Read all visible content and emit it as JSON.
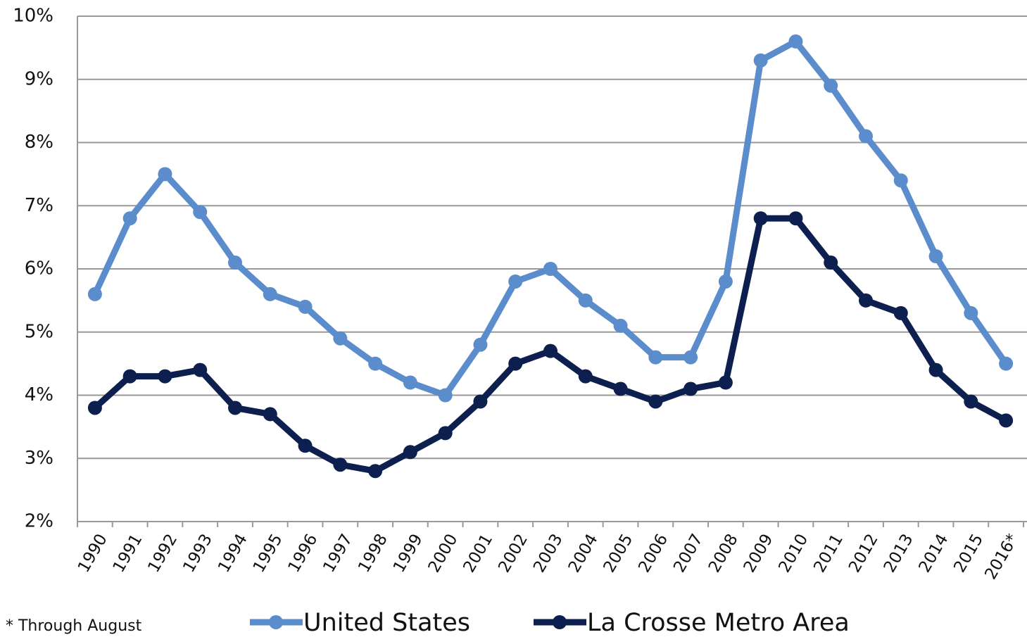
{
  "chart_data": {
    "type": "line",
    "categories": [
      "1990",
      "1991",
      "1992",
      "1993",
      "1994",
      "1995",
      "1996",
      "1997",
      "1998",
      "1999",
      "2000",
      "2001",
      "2002",
      "2003",
      "2004",
      "2005",
      "2006",
      "2007",
      "2008",
      "2009",
      "2010",
      "2011",
      "2012",
      "2013",
      "2014",
      "2015",
      "2016*"
    ],
    "series": [
      {
        "name": "United States",
        "color": "#5b8ccc",
        "values": [
          5.6,
          6.8,
          7.5,
          6.9,
          6.1,
          5.6,
          5.4,
          4.9,
          4.5,
          4.2,
          4.0,
          4.8,
          5.8,
          6.0,
          5.5,
          5.1,
          4.6,
          4.6,
          5.8,
          9.3,
          9.6,
          8.9,
          8.1,
          7.4,
          6.2,
          5.3,
          4.5
        ]
      },
      {
        "name": "La Crosse Metro Area",
        "color": "#0c1f4f",
        "values": [
          3.8,
          4.3,
          4.3,
          4.4,
          3.8,
          3.7,
          3.2,
          2.9,
          2.8,
          3.1,
          3.4,
          3.9,
          4.5,
          4.7,
          4.3,
          4.1,
          3.9,
          4.1,
          4.2,
          6.8,
          6.8,
          6.1,
          5.5,
          5.3,
          4.4,
          3.9,
          3.6
        ]
      }
    ],
    "ylim": [
      2,
      10
    ],
    "yticks": [
      {
        "value": 2,
        "label": "2%"
      },
      {
        "value": 3,
        "label": "3%"
      },
      {
        "value": 4,
        "label": "4%"
      },
      {
        "value": 5,
        "label": "5%"
      },
      {
        "value": 6,
        "label": "6%"
      },
      {
        "value": 7,
        "label": "7%"
      },
      {
        "value": 8,
        "label": "8%"
      },
      {
        "value": 9,
        "label": "9%"
      },
      {
        "value": 10,
        "label": "10%"
      }
    ],
    "grid": true,
    "note": "* Through August"
  }
}
